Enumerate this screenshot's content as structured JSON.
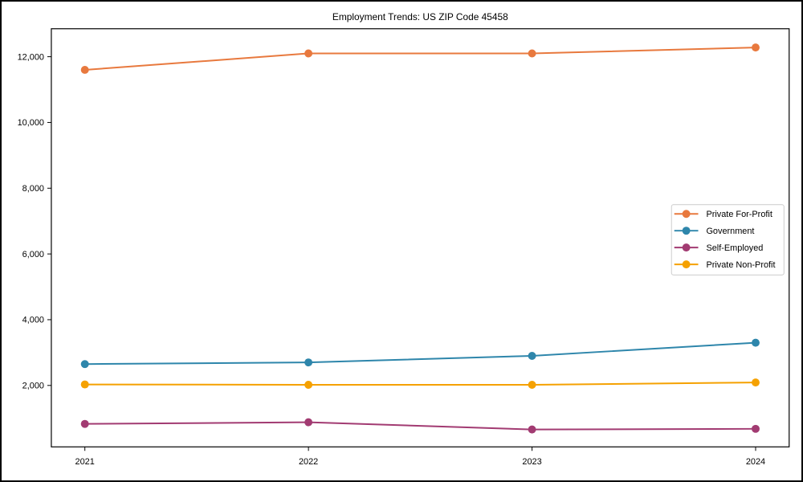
{
  "chart_data": {
    "type": "line",
    "title": "Employment Trends: US ZIP Code 45458",
    "xlabel": "",
    "ylabel": "",
    "x": [
      2021,
      2022,
      2023,
      2024
    ],
    "xtick_labels": [
      "2021",
      "2022",
      "2023",
      "2024"
    ],
    "series": [
      {
        "name": "Private For-Profit",
        "color": "#e8793e",
        "values": [
          11600,
          12100,
          12100,
          12280
        ]
      },
      {
        "name": "Government",
        "color": "#2e86ab",
        "values": [
          2650,
          2700,
          2900,
          3300
        ]
      },
      {
        "name": "Self-Employed",
        "color": "#a23b72",
        "values": [
          830,
          880,
          660,
          680
        ]
      },
      {
        "name": "Private Non-Profit",
        "color": "#f5a101",
        "values": [
          2030,
          2020,
          2020,
          2090
        ]
      }
    ],
    "yticks": [
      2000,
      4000,
      6000,
      8000,
      10000,
      12000
    ],
    "ytick_labels": [
      "2,000",
      "4,000",
      "6,000",
      "8,000",
      "10,000",
      "12,000"
    ],
    "xlim": [
      2020.85,
      2024.15
    ],
    "ylim": [
      131,
      12851
    ],
    "grid": false,
    "legend_position": "center right",
    "axis_color": "#000000",
    "legend_border_color": "#cccccc",
    "background": "#ffffff"
  }
}
